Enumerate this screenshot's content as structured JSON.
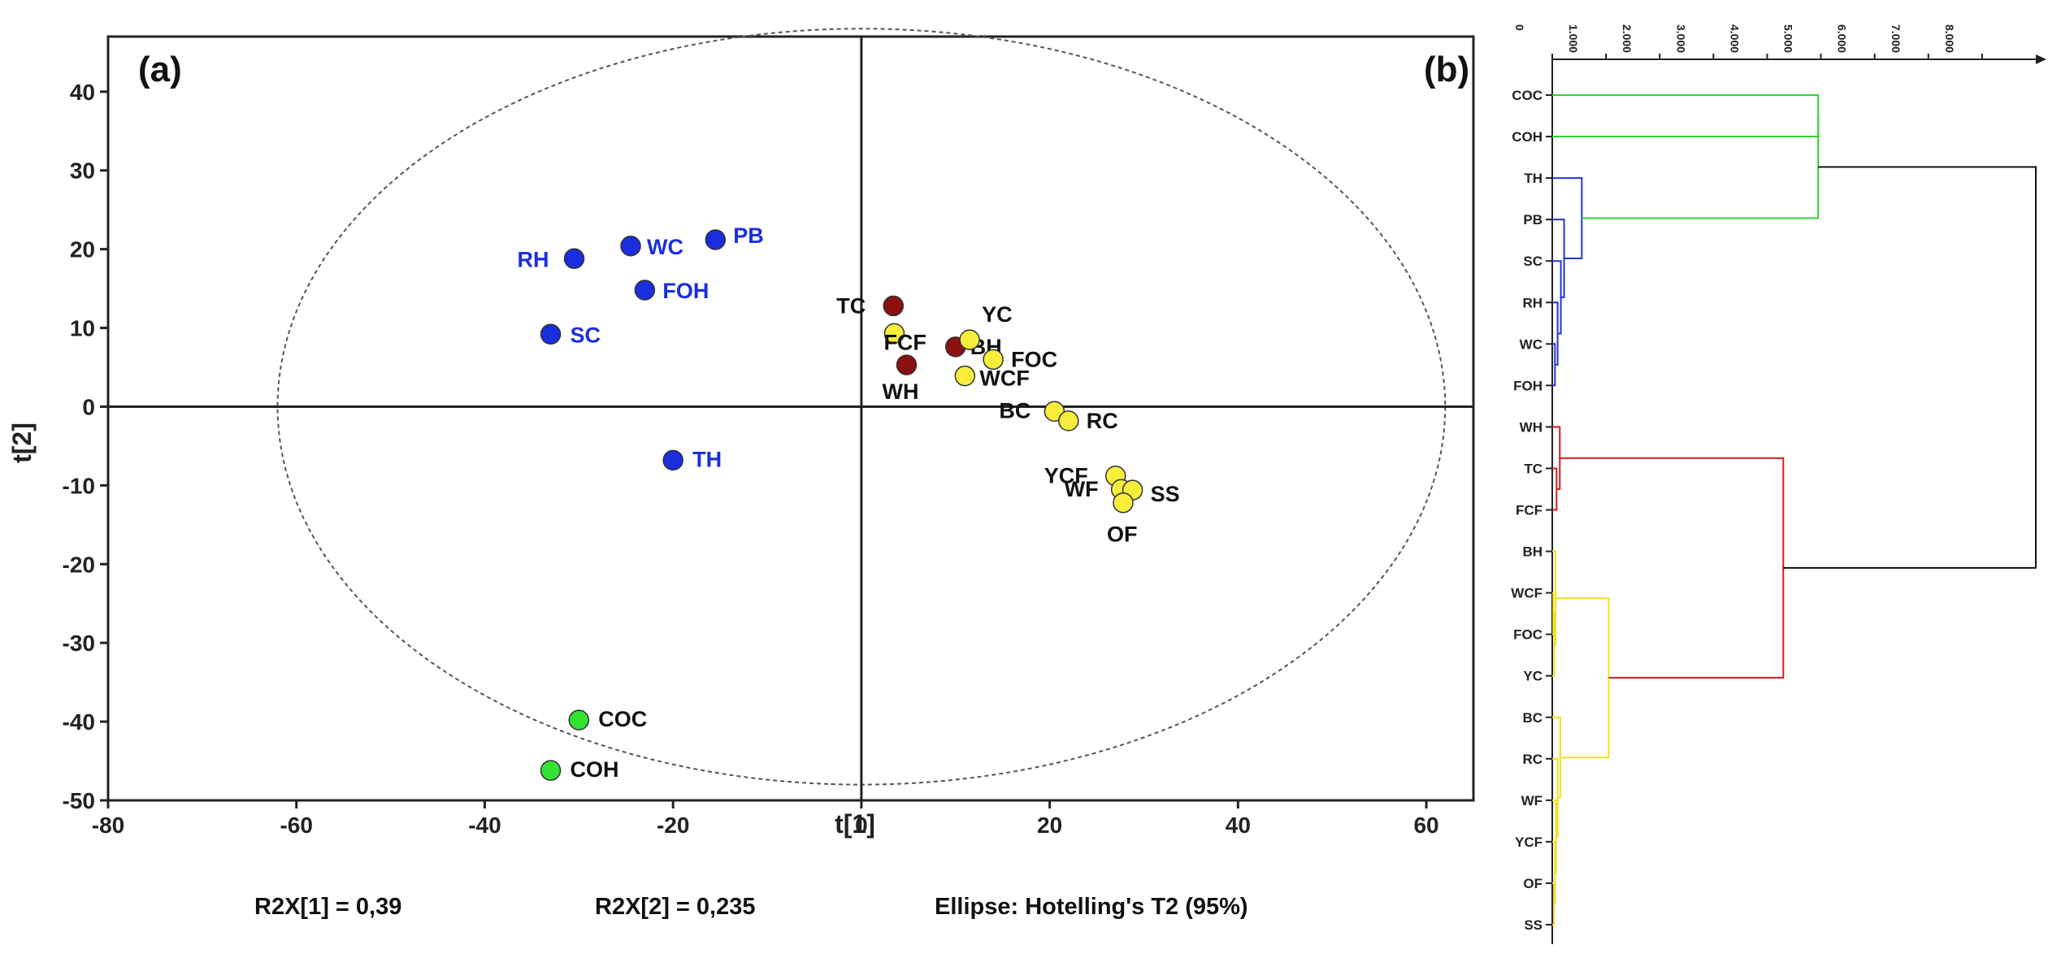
{
  "chart_data": [
    {
      "type": "scatter",
      "panel_label": "(a)",
      "xlabel": "t[1]",
      "ylabel": "t[2]",
      "xlim": [
        -80,
        65
      ],
      "ylim": [
        -50,
        47
      ],
      "xticks": [
        -80,
        -60,
        -40,
        -20,
        0,
        20,
        40,
        60
      ],
      "yticks": [
        -50,
        -40,
        -30,
        -20,
        -10,
        0,
        10,
        20,
        30,
        40
      ],
      "ellipse": {
        "cx": 0,
        "cy": 0,
        "rx": 62,
        "ry": 48,
        "label": "Ellipse: Hotelling's T2 (95%)"
      },
      "footer": {
        "r2x1": "R2X[1] = 0,39",
        "r2x2": "R2X[2] = 0,235",
        "ellipse_note": "Ellipse: Hotelling's T2 (95%)"
      },
      "colors": {
        "blue": "#1a2ee0",
        "green": "#34e234",
        "darkred": "#8b1010",
        "yellow": "#f7ee3c"
      },
      "series": [
        {
          "name": "blue",
          "points": [
            {
              "label": "RH",
              "x": -30.5,
              "y": 18.8
            },
            {
              "label": "WC",
              "x": -24.5,
              "y": 20.4
            },
            {
              "label": "PB",
              "x": -15.5,
              "y": 21.2
            },
            {
              "label": "FOH",
              "x": -23.0,
              "y": 14.8
            },
            {
              "label": "SC",
              "x": -33.0,
              "y": 9.2
            },
            {
              "label": "TH",
              "x": -20.0,
              "y": -6.8
            }
          ]
        },
        {
          "name": "green",
          "points": [
            {
              "label": "COC",
              "x": -30.0,
              "y": -39.8
            },
            {
              "label": "COH",
              "x": -33.0,
              "y": -46.2
            }
          ]
        },
        {
          "name": "darkred",
          "points": [
            {
              "label": "TC",
              "x": 3.4,
              "y": 12.8
            },
            {
              "label": "BH",
              "x": 10.0,
              "y": 7.6
            },
            {
              "label": "WH",
              "x": 4.8,
              "y": 5.3
            }
          ]
        },
        {
          "name": "yellow",
          "points": [
            {
              "label": "FCF",
              "x": 3.5,
              "y": 9.3
            },
            {
              "label": "YC",
              "x": 11.5,
              "y": 8.5
            },
            {
              "label": "FOC",
              "x": 14.0,
              "y": 6.0
            },
            {
              "label": "WCF",
              "x": 11.0,
              "y": 3.9
            },
            {
              "label": "BC",
              "x": 20.5,
              "y": -0.6
            },
            {
              "label": "RC",
              "x": 22.0,
              "y": -1.8
            },
            {
              "label": "YCF",
              "x": 27.0,
              "y": -8.8
            },
            {
              "label": "WF",
              "x": 27.6,
              "y": -10.5
            },
            {
              "label": "SS",
              "x": 28.8,
              "y": -10.6
            },
            {
              "label": "OF",
              "x": 27.8,
              "y": -12.2
            }
          ]
        }
      ]
    },
    {
      "type": "dendrogram",
      "panel_label": "(b)",
      "xticks": [
        "0",
        "1.000",
        "2.000",
        "3.000",
        "4.000",
        "5.000",
        "6.000",
        "7.000",
        "8.000"
      ],
      "xlim": [
        0,
        9
      ],
      "leaves": [
        "COC",
        "COH",
        "TH",
        "PB",
        "SC",
        "RH",
        "WC",
        "FOH",
        "WH",
        "TC",
        "FCF",
        "BH",
        "WCF",
        "FOC",
        "YC",
        "BC",
        "RC",
        "WF",
        "YCF",
        "OF",
        "SS"
      ],
      "colors": {
        "green": "#2fd22f",
        "blue": "#2433d8",
        "red": "#d41a1a",
        "yellow": "#f2e21c",
        "black": "#111111"
      }
    }
  ]
}
